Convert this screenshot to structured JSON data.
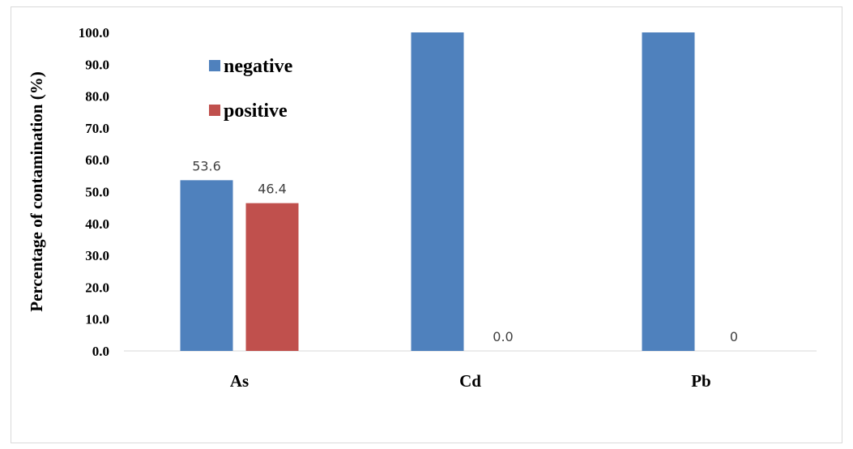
{
  "chart_data": {
    "type": "bar",
    "categories": [
      "As",
      "Cd",
      "Pb"
    ],
    "series": [
      {
        "name": "negative",
        "color": "#4f81bd",
        "values": [
          53.6,
          100.0,
          100.0
        ],
        "labels": [
          "53.6",
          "",
          ""
        ]
      },
      {
        "name": "positive",
        "color": "#c0504d",
        "values": [
          46.4,
          0.0,
          0.0
        ],
        "labels": [
          "46.4",
          "0.0",
          "0"
        ]
      }
    ],
    "ylabel": "Percentage of contamination (%)",
    "xlabel": "",
    "ylim": [
      0,
      100
    ],
    "yticks": [
      "0.0",
      "10.0",
      "20.0",
      "30.0",
      "40.0",
      "50.0",
      "60.0",
      "70.0",
      "80.0",
      "90.0",
      "100.0"
    ],
    "grid": false,
    "legend_position": "top-left"
  }
}
